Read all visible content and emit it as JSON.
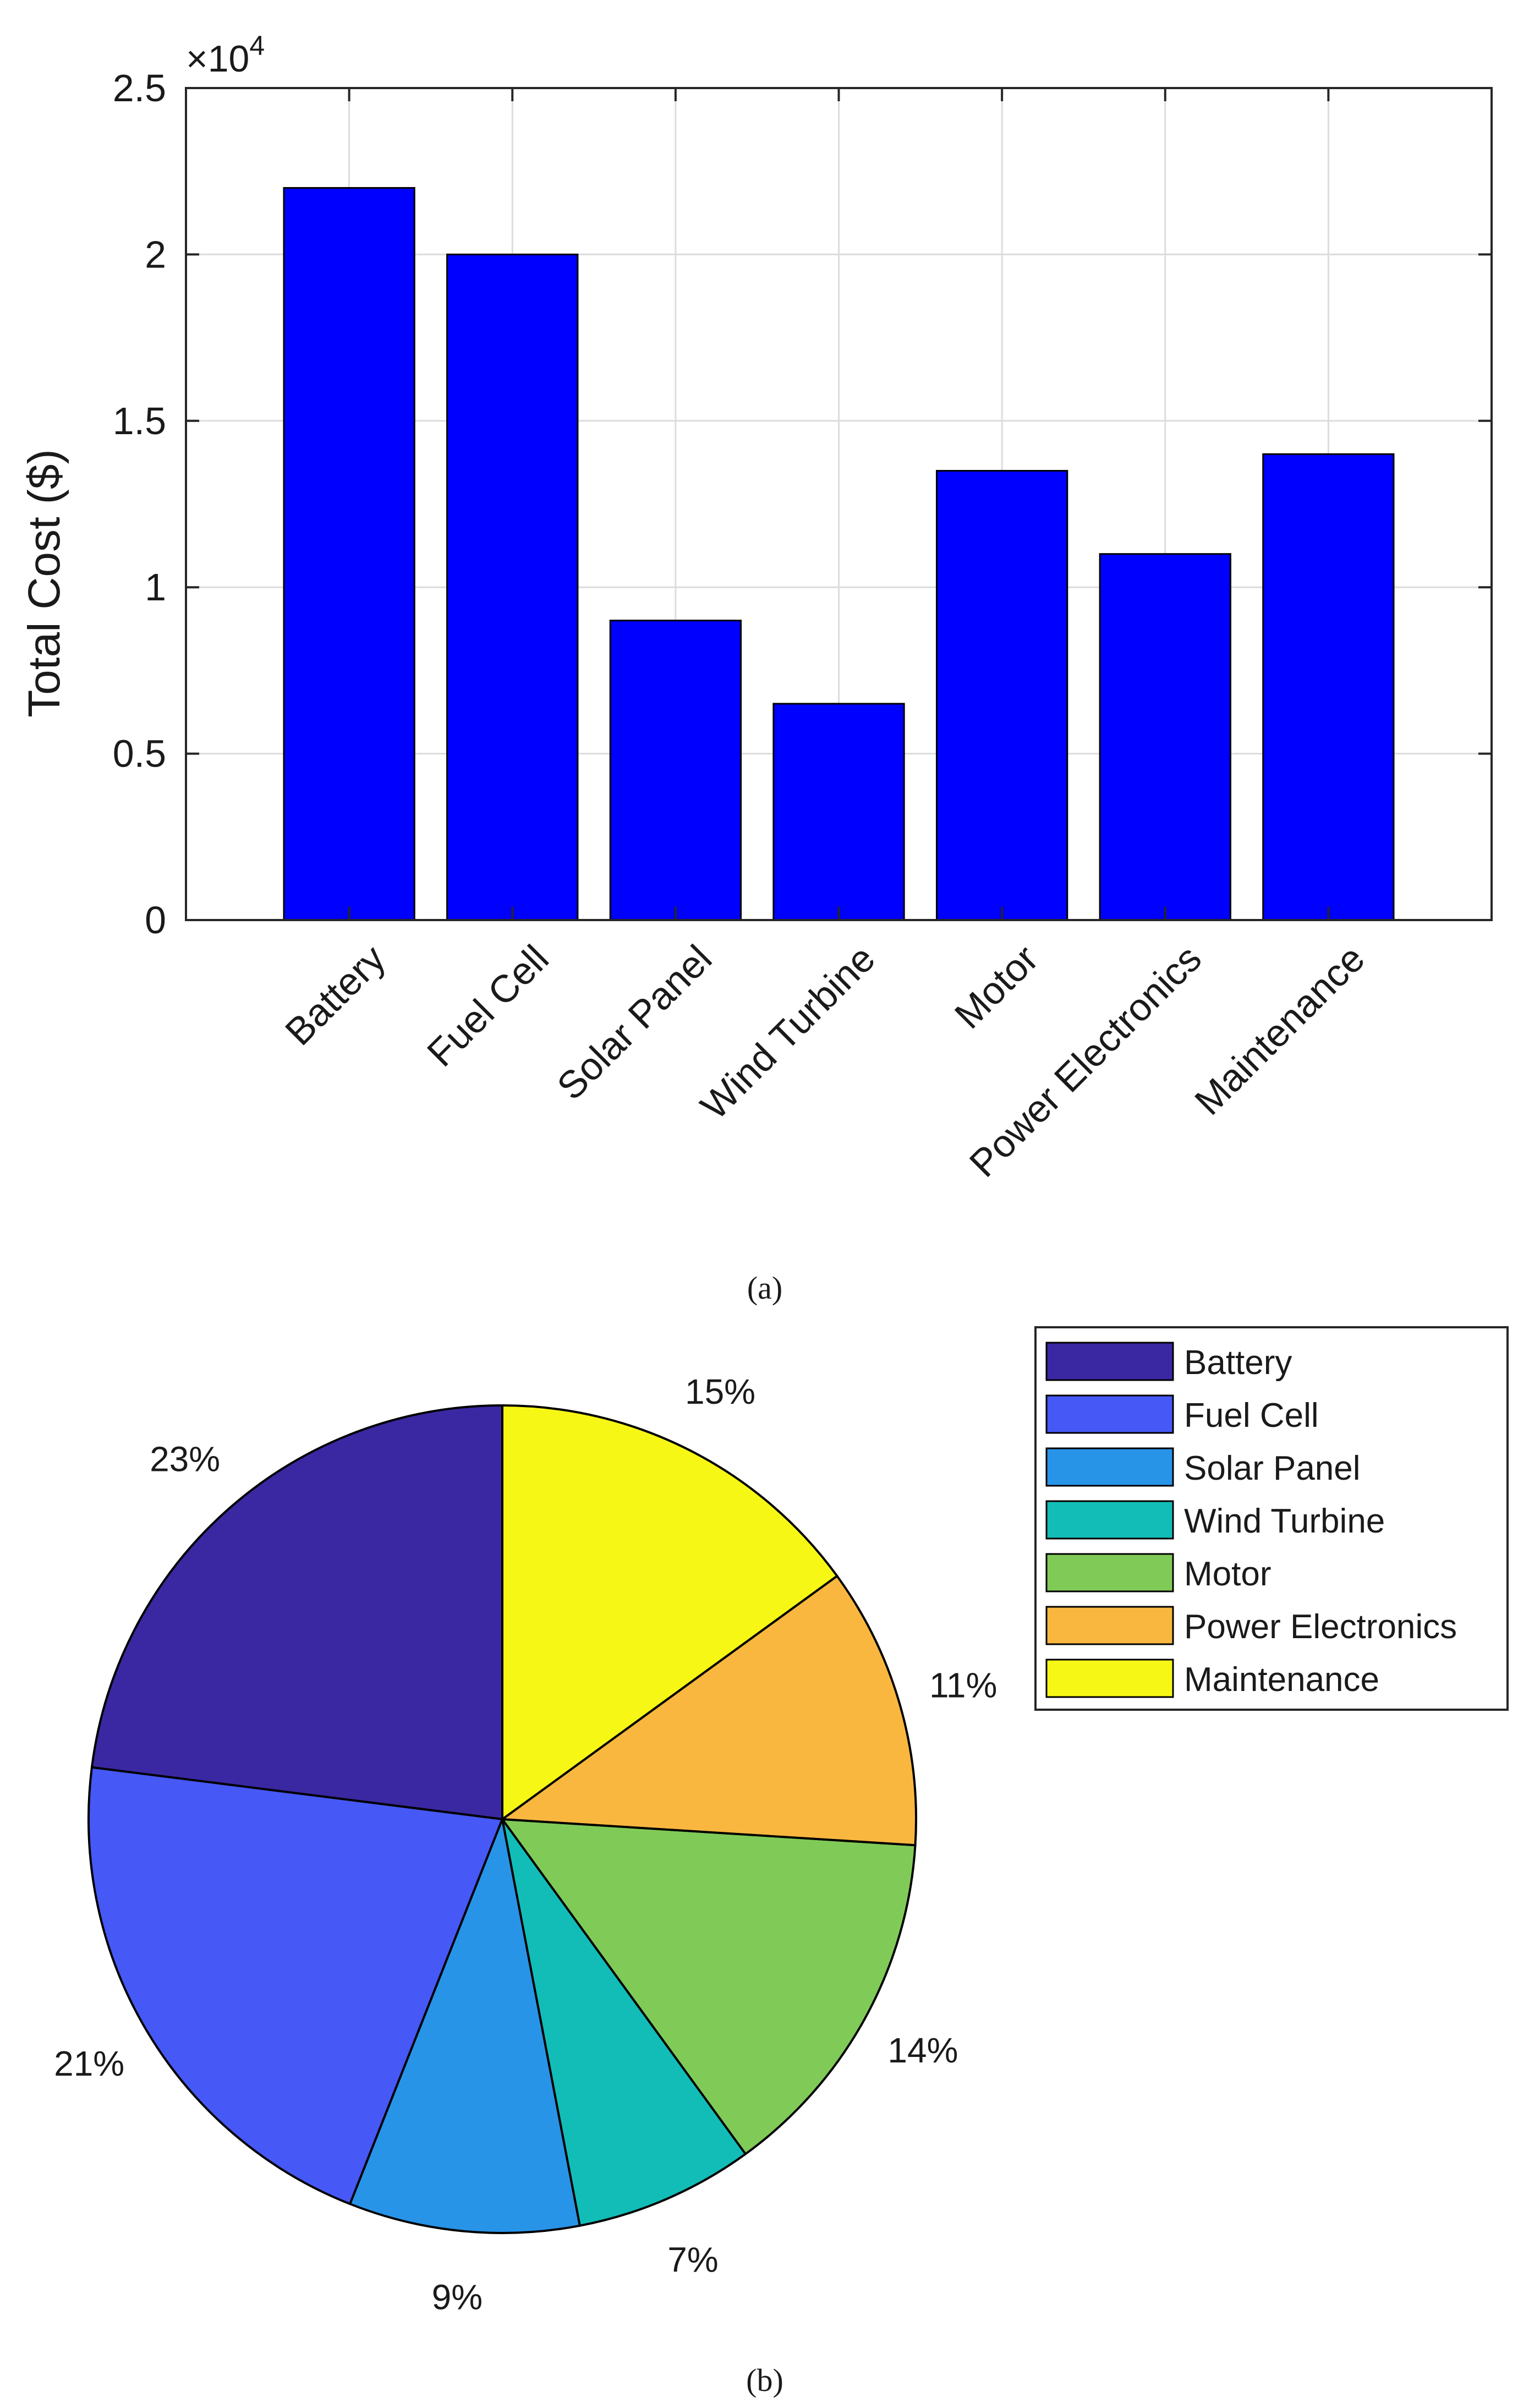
{
  "chart_data": [
    {
      "type": "bar",
      "panel_label": "(a)",
      "title": "",
      "xlabel": "",
      "ylabel": "Total Cost ($)",
      "y_exponent_label": "×10",
      "y_exponent_power": "4",
      "ylim": [
        0,
        2.5
      ],
      "yticks": [
        "0",
        "0.5",
        "1",
        "1.5",
        "2",
        "2.5"
      ],
      "grid": true,
      "categories": [
        "Battery",
        "Fuel Cell",
        "Solar Panel",
        "Wind Turbine",
        "Motor",
        "Power Electronics",
        "Maintenance"
      ],
      "values": [
        2.2,
        2.0,
        0.9,
        0.65,
        1.35,
        1.1,
        1.4
      ],
      "bar_color": "#0000ff"
    },
    {
      "type": "pie",
      "panel_label": "(b)",
      "title": "",
      "legend_position": "top-right",
      "slices": [
        {
          "label": "Battery",
          "value": 23,
          "text": "23%",
          "color": "#3a28a2"
        },
        {
          "label": "Fuel Cell",
          "value": 21,
          "text": "21%",
          "color": "#4658f5"
        },
        {
          "label": "Solar Panel",
          "value": 9,
          "text": "9%",
          "color": "#2894e8"
        },
        {
          "label": "Wind Turbine",
          "value": 7,
          "text": "7%",
          "color": "#13bdb7"
        },
        {
          "label": "Motor",
          "value": 14,
          "text": "14%",
          "color": "#80cb58"
        },
        {
          "label": "Power Electronics",
          "value": 11,
          "text": "11%",
          "color": "#f9b73f"
        },
        {
          "label": "Maintenance",
          "value": 15,
          "text": "15%",
          "color": "#f7f716"
        }
      ]
    }
  ]
}
